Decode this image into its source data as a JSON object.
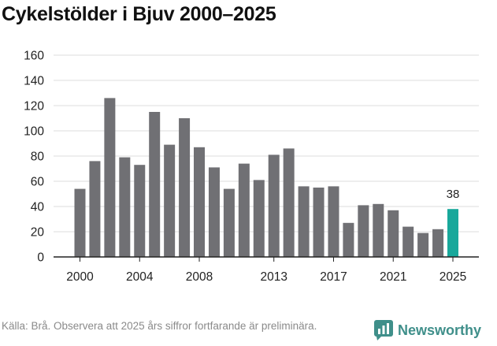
{
  "title": "Cykelstölder i Bjuv 2000–2025",
  "footer": {
    "source_text": "Källa: Brå. Observera att 2025 års siffror fortfarande är preliminära."
  },
  "brand": {
    "name": "Newsworthy",
    "icon": "newsworthy-logo-icon"
  },
  "colors": {
    "bar": "#707074",
    "highlight": "#18a89b",
    "grid": "#dddddd",
    "axis": "#222222"
  },
  "chart_data": {
    "type": "bar",
    "title": "Cykelstölder i Bjuv 2000–2025",
    "xlabel": "",
    "ylabel": "",
    "ylim": [
      0,
      160
    ],
    "yticks": [
      0,
      20,
      40,
      60,
      80,
      100,
      120,
      140,
      160
    ],
    "categories": [
      2000,
      2001,
      2002,
      2003,
      2004,
      2005,
      2006,
      2007,
      2008,
      2009,
      2010,
      2011,
      2012,
      2013,
      2014,
      2015,
      2016,
      2017,
      2018,
      2019,
      2020,
      2021,
      2022,
      2023,
      2024,
      2025
    ],
    "values": [
      54,
      76,
      126,
      79,
      73,
      115,
      89,
      110,
      87,
      71,
      54,
      74,
      61,
      81,
      86,
      56,
      55,
      56,
      27,
      41,
      42,
      37,
      24,
      19,
      22,
      38
    ],
    "xtick_labels": [
      "2000",
      "2004",
      "2008",
      "2013",
      "2017",
      "2021",
      "2025"
    ],
    "highlight_category": 2025,
    "annotations": [
      {
        "category": 2025,
        "text": "38"
      }
    ]
  }
}
